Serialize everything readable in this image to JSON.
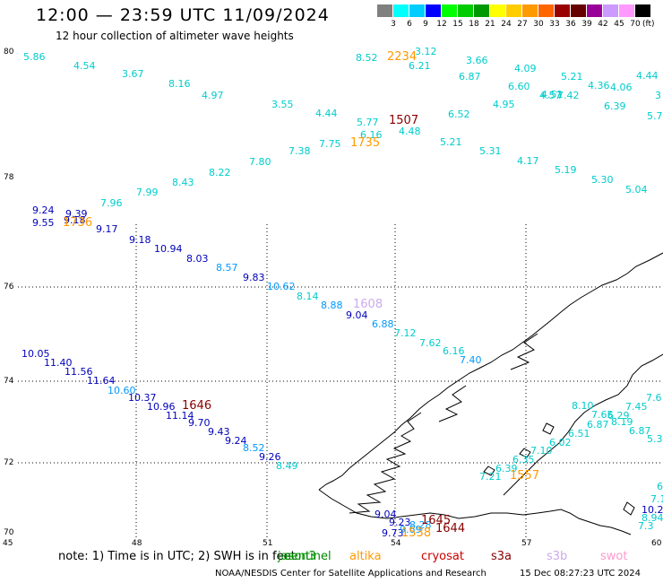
{
  "title": "12:00 — 23:59 UTC 11/09/2024",
  "subtitle": "12 hour collection of altimeter wave heights",
  "colorbar": {
    "colors": [
      "#808080",
      "#00ffff",
      "#00ccff",
      "#0000ff",
      "#00ff00",
      "#00cc00",
      "#009900",
      "#ffff00",
      "#ffcc00",
      "#ff9900",
      "#ff6600",
      "#990000",
      "#660000",
      "#990099",
      "#cc99ff",
      "#ff99ff",
      "#000000"
    ],
    "labels": [
      "3",
      "6",
      "9",
      "12",
      "15",
      "18",
      "21",
      "24",
      "27",
      "30",
      "33",
      "36",
      "39",
      "42",
      "45",
      "70"
    ],
    "unit": "(ft)"
  },
  "axes": {
    "lat_labels": [
      "80",
      "78",
      "76",
      "74",
      "72",
      "70"
    ],
    "lon_labels": [
      "45",
      "48",
      "51",
      "54",
      "57",
      "60"
    ]
  },
  "track_colors": {
    "cyan": "#00cccc",
    "blue": "#0000bb",
    "light_blue": "#0099ff"
  },
  "wave_heights": {
    "track_a": [
      "5.86",
      "4.54",
      "3.67",
      "8.16",
      "4.97",
      "3.55",
      "4.44",
      "5.77",
      "6.16",
      "4.48",
      "5.21",
      "5.31",
      "4.17",
      "5.19",
      "5.30",
      "5.04",
      "4.51",
      "7.38",
      "7.75",
      "7.80",
      "8.22",
      "8.43",
      "7.99",
      "7.96"
    ],
    "track_b": [
      "8.52",
      "3.12",
      "6.21",
      "3.66",
      "6.87",
      "4.09",
      "6.60",
      "4.95",
      "6.52",
      "5.21",
      "4.57",
      "7.42",
      "4.36",
      "4.06",
      "6.39",
      "4.44",
      "3",
      "5.7"
    ],
    "track_c": [
      "9.24",
      "9.39",
      "9.55",
      "9.18",
      "9.17",
      "9.18",
      "10.94",
      "8.03",
      "8.57",
      "9.83",
      "10.62",
      "8.14",
      "8.88",
      "9.04",
      "6.88",
      "7.12",
      "7.62",
      "6.16",
      "7.40"
    ],
    "track_d": [
      "10.05",
      "11.40",
      "11.56",
      "11.64",
      "10.60",
      "10.37",
      "10.96",
      "11.14",
      "9.70",
      "9.43",
      "9.24",
      "8.52",
      "9.26",
      "8.49"
    ],
    "track_e": [
      "8.10",
      "7.65",
      "7.45",
      "7.6",
      "6.87",
      "6.29",
      "8.19",
      "6.51",
      "6.87",
      "5.3",
      "6.02",
      "7.10",
      "6.35",
      "6.39",
      "7.21",
      "10.2",
      "8.94",
      "7.3",
      "7.1",
      "6"
    ],
    "track_f": [
      "9.04",
      "9.23",
      "9.73",
      "9.69",
      "8.28"
    ]
  },
  "time_labels": [
    "2234",
    "1507",
    "1735",
    "1736",
    "1608",
    "1646",
    "1557",
    "1645",
    "1644",
    "1538"
  ],
  "satellites": [
    {
      "name": "jason3",
      "color": "#009900"
    },
    {
      "name": "sentinel",
      "color": "#008800"
    },
    {
      "name": "altika",
      "color": "#ff9900"
    },
    {
      "name": "cryosat",
      "color": "#cc0000"
    },
    {
      "name": "s3a",
      "color": "#880000"
    },
    {
      "name": "s3b",
      "color": "#ccaaee"
    },
    {
      "name": "swot",
      "color": "#ff99cc"
    }
  ],
  "footer": {
    "note": "note:  1) Time is in UTC; 2) SWH is in feet",
    "credit": "NOAA/NESDIS Center for Satellite Applications and Research",
    "timestamp": "15 Dec 08:27:23 UTC 2024"
  }
}
